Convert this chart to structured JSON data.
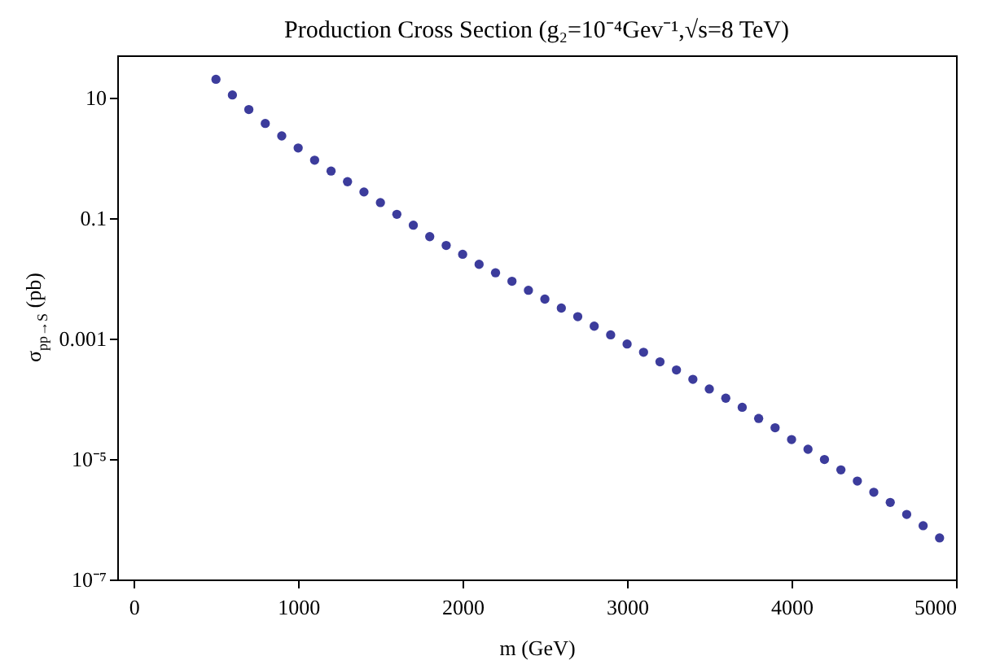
{
  "chart_data": {
    "type": "scatter",
    "title": "Production Cross Section (g₂=10⁻⁴Gev⁻¹,√s=8 TeV)",
    "xlabel": "m (GeV)",
    "ylabel": "σ$_{pp→S}$ (pb)",
    "x": [
      500,
      600,
      700,
      800,
      900,
      1000,
      1100,
      1200,
      1300,
      1400,
      1500,
      1600,
      1700,
      1800,
      1900,
      2000,
      2100,
      2200,
      2300,
      2400,
      2500,
      2600,
      2700,
      2800,
      2900,
      3000,
      3100,
      3200,
      3300,
      3400,
      3500,
      3600,
      3700,
      3800,
      3900,
      4000,
      4100,
      4200,
      4300,
      4400,
      4500,
      4600,
      4700,
      4800,
      4900
    ],
    "series": [
      {
        "color": "#3c3c9c",
        "values": [
          20,
          11,
          6.3,
          3.7,
          2.3,
          1.45,
          0.91,
          0.6,
          0.4,
          0.27,
          0.18,
          0.115,
          0.076,
          0.049,
          0.035,
          0.025,
          0.017,
          0.0123,
          0.0089,
          0.0063,
          0.0045,
          0.0032,
          0.0023,
          0.0016,
          0.00115,
          0.00081,
          0.00059,
          0.00041,
          0.0003,
          0.00021,
          0.000145,
          0.000102,
          7.2e-05,
          4.7e-05,
          3.3e-05,
          2.1e-05,
          1.45e-05,
          9.8e-06,
          6.6e-06,
          4.3e-06,
          2.8e-06,
          1.9e-06,
          1.2e-06,
          7.8e-07,
          4.9e-07
        ]
      }
    ],
    "xlim": [
      -100,
      5000
    ],
    "xticks": [
      0,
      1000,
      2000,
      3000,
      4000,
      5000
    ],
    "ylim": [
      1e-07,
      50
    ],
    "yticks": [
      {
        "value": 1e-07,
        "label": "10⁻⁷"
      },
      {
        "value": 1e-05,
        "label": "10⁻⁵"
      },
      0.001,
      0.1,
      10
    ],
    "log": "y",
    "grid": false,
    "legend": false,
    "marker": "circle"
  }
}
